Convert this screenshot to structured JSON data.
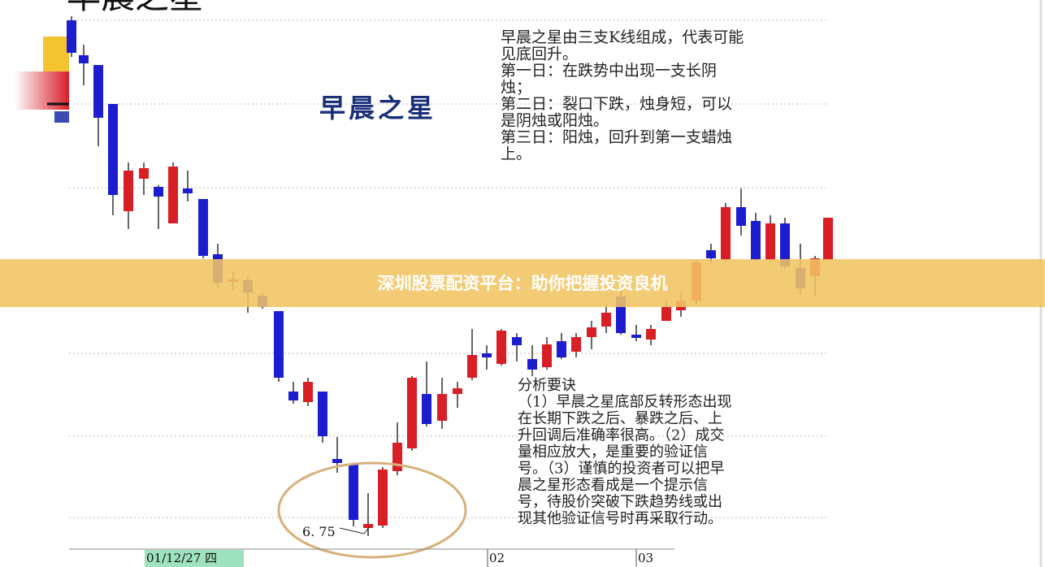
{
  "header_title": "早晨之星",
  "pattern_label": "早晨之星",
  "description": [
    "早晨之星由三支K线组成，代表可能",
    "见底回升。",
    "第一日：在跌势中出现一支长阴",
    "烛；",
    "第二日：裂口下跌，烛身短，可以",
    "是阴烛或阳烛。",
    "第三日：阳烛，回升到第一支蜡烛",
    "上。"
  ],
  "analysis": [
    "分析要诀",
    "（1）早晨之星底部反转形态出现",
    "在长期下跌之后、暴跌之后、上",
    "升回调后准确率很高。（2）成交",
    "量相应放大，是重要的验证信",
    "号。（3）谨慎的投资者可以把早",
    "晨之星形态看成是一个提示信",
    "号，待股价突破下跌趋势线或出",
    "现其他验证信号时再采取行动。"
  ],
  "low_price_label": "6. 75",
  "dates": [
    "01/12/27 四",
    "02",
    "03"
  ],
  "banner": "深圳股票配资平台：助你把握投资良机"
}
